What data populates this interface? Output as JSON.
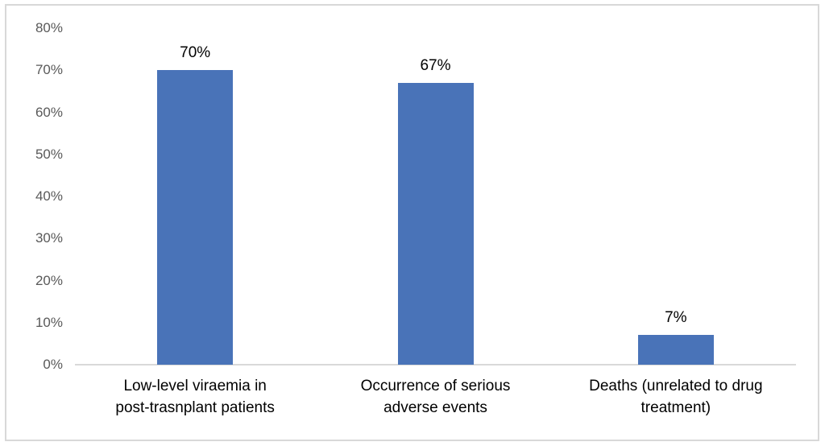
{
  "chart_data": {
    "type": "bar",
    "title": "",
    "xlabel": "",
    "ylabel": "",
    "categories": [
      "Low-level viraemia in post-trasnplant patients",
      "Occurrence of serious adverse events",
      "Deaths (unrelated to drug treatment)"
    ],
    "category_lines": [
      [
        "Low-level viraemia in",
        "post-trasnplant patients"
      ],
      [
        "Occurrence of serious",
        "adverse events"
      ],
      [
        "Deaths (unrelated to drug",
        "treatment)"
      ]
    ],
    "values": [
      70,
      67,
      7
    ],
    "data_labels": [
      "70%",
      "67%",
      "7%"
    ],
    "ylim": [
      0,
      80
    ],
    "ytick_step": 10,
    "ytick_labels": [
      "0%",
      "10%",
      "20%",
      "30%",
      "40%",
      "50%",
      "60%",
      "70%",
      "80%"
    ],
    "grid": false,
    "legend": false,
    "bar_color": "#4973B8",
    "axis_line_color": "#D9D9D9",
    "tick_label_color": "#595959",
    "data_label_color": "#000000",
    "category_label_color": "#000000",
    "frame_border_color": "#D8D8D8",
    "plot_background": "#FFFFFF"
  }
}
